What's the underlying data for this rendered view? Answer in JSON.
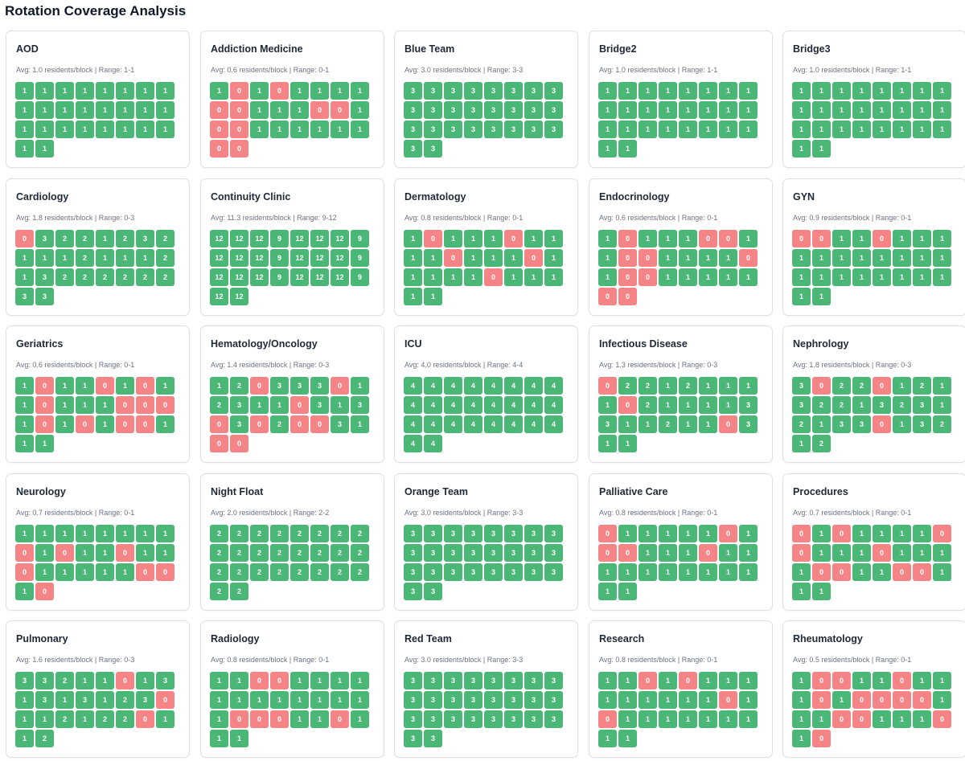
{
  "page_title": "Rotation Coverage Analysis",
  "colors": {
    "covered": "#4bb777",
    "uncovered": "#f48486"
  },
  "rotations": [
    {
      "name": "AOD",
      "stats": "Avg: 1.0 residents/block | Range: 1-1",
      "blocks": [
        1,
        1,
        1,
        1,
        1,
        1,
        1,
        1,
        1,
        1,
        1,
        1,
        1,
        1,
        1,
        1,
        1,
        1,
        1,
        1,
        1,
        1,
        1,
        1,
        1,
        1
      ]
    },
    {
      "name": "Addiction Medicine",
      "stats": "Avg: 0.6 residents/block | Range: 0-1",
      "blocks": [
        1,
        0,
        1,
        0,
        1,
        1,
        1,
        1,
        0,
        0,
        1,
        1,
        1,
        0,
        0,
        1,
        0,
        0,
        1,
        1,
        1,
        1,
        1,
        1,
        0,
        0
      ]
    },
    {
      "name": "Blue Team",
      "stats": "Avg: 3.0 residents/block | Range: 3-3",
      "blocks": [
        3,
        3,
        3,
        3,
        3,
        3,
        3,
        3,
        3,
        3,
        3,
        3,
        3,
        3,
        3,
        3,
        3,
        3,
        3,
        3,
        3,
        3,
        3,
        3,
        3,
        3
      ]
    },
    {
      "name": "Bridge2",
      "stats": "Avg: 1.0 residents/block | Range: 1-1",
      "blocks": [
        1,
        1,
        1,
        1,
        1,
        1,
        1,
        1,
        1,
        1,
        1,
        1,
        1,
        1,
        1,
        1,
        1,
        1,
        1,
        1,
        1,
        1,
        1,
        1,
        1,
        1
      ]
    },
    {
      "name": "Bridge3",
      "stats": "Avg: 1.0 residents/block | Range: 1-1",
      "blocks": [
        1,
        1,
        1,
        1,
        1,
        1,
        1,
        1,
        1,
        1,
        1,
        1,
        1,
        1,
        1,
        1,
        1,
        1,
        1,
        1,
        1,
        1,
        1,
        1,
        1,
        1
      ]
    },
    {
      "name": "Cardiology",
      "stats": "Avg: 1.8 residents/block | Range: 0-3",
      "blocks": [
        0,
        3,
        2,
        2,
        1,
        2,
        3,
        2,
        1,
        1,
        1,
        2,
        1,
        1,
        1,
        2,
        1,
        3,
        2,
        2,
        2,
        2,
        2,
        2,
        3,
        3
      ]
    },
    {
      "name": "Continuity Clinic",
      "stats": "Avg: 11.3 residents/block | Range: 9-12",
      "blocks": [
        12,
        12,
        12,
        9,
        12,
        12,
        12,
        9,
        12,
        12,
        12,
        9,
        12,
        12,
        12,
        9,
        12,
        12,
        12,
        9,
        12,
        12,
        12,
        9,
        12,
        12
      ]
    },
    {
      "name": "Dermatology",
      "stats": "Avg: 0.8 residents/block | Range: 0-1",
      "blocks": [
        1,
        0,
        1,
        1,
        1,
        0,
        1,
        1,
        1,
        1,
        0,
        1,
        1,
        1,
        0,
        1,
        1,
        1,
        1,
        1,
        0,
        1,
        1,
        1,
        1,
        1
      ]
    },
    {
      "name": "Endocrinology",
      "stats": "Avg: 0.6 residents/block | Range: 0-1",
      "blocks": [
        1,
        0,
        1,
        1,
        1,
        0,
        0,
        1,
        1,
        0,
        0,
        1,
        1,
        1,
        1,
        0,
        1,
        0,
        0,
        1,
        1,
        1,
        1,
        1,
        0,
        0
      ]
    },
    {
      "name": "GYN",
      "stats": "Avg: 0.9 residents/block | Range: 0-1",
      "blocks": [
        0,
        0,
        1,
        1,
        0,
        1,
        1,
        1,
        1,
        1,
        1,
        1,
        1,
        1,
        1,
        1,
        1,
        1,
        1,
        1,
        1,
        1,
        1,
        1,
        1,
        1
      ]
    },
    {
      "name": "Geriatrics",
      "stats": "Avg: 0.6 residents/block | Range: 0-1",
      "blocks": [
        1,
        0,
        1,
        1,
        0,
        1,
        0,
        1,
        1,
        0,
        1,
        1,
        1,
        0,
        0,
        0,
        1,
        0,
        1,
        0,
        1,
        0,
        0,
        1,
        1,
        1
      ]
    },
    {
      "name": "Hematology/Oncology",
      "stats": "Avg: 1.4 residents/block | Range: 0-3",
      "blocks": [
        1,
        2,
        0,
        3,
        3,
        3,
        0,
        1,
        2,
        3,
        1,
        1,
        0,
        3,
        1,
        3,
        0,
        3,
        0,
        2,
        0,
        0,
        3,
        1,
        0,
        0
      ]
    },
    {
      "name": "ICU",
      "stats": "Avg: 4.0 residents/block | Range: 4-4",
      "blocks": [
        4,
        4,
        4,
        4,
        4,
        4,
        4,
        4,
        4,
        4,
        4,
        4,
        4,
        4,
        4,
        4,
        4,
        4,
        4,
        4,
        4,
        4,
        4,
        4,
        4,
        4
      ]
    },
    {
      "name": "Infectious Disease",
      "stats": "Avg: 1.3 residents/block | Range: 0-3",
      "blocks": [
        0,
        2,
        2,
        1,
        2,
        1,
        1,
        1,
        1,
        0,
        2,
        1,
        1,
        1,
        1,
        3,
        3,
        1,
        1,
        2,
        1,
        1,
        0,
        3,
        1,
        1
      ]
    },
    {
      "name": "Nephrology",
      "stats": "Avg: 1.8 residents/block | Range: 0-3",
      "blocks": [
        3,
        0,
        2,
        2,
        0,
        1,
        2,
        1,
        3,
        2,
        2,
        1,
        3,
        2,
        3,
        1,
        2,
        1,
        3,
        3,
        0,
        1,
        3,
        2,
        1,
        2
      ]
    },
    {
      "name": "Neurology",
      "stats": "Avg: 0.7 residents/block | Range: 0-1",
      "blocks": [
        1,
        1,
        1,
        1,
        1,
        1,
        1,
        1,
        0,
        1,
        0,
        1,
        1,
        0,
        1,
        1,
        0,
        1,
        1,
        1,
        1,
        1,
        0,
        0,
        1,
        0
      ]
    },
    {
      "name": "Night Float",
      "stats": "Avg: 2.0 residents/block | Range: 2-2",
      "blocks": [
        2,
        2,
        2,
        2,
        2,
        2,
        2,
        2,
        2,
        2,
        2,
        2,
        2,
        2,
        2,
        2,
        2,
        2,
        2,
        2,
        2,
        2,
        2,
        2,
        2,
        2
      ]
    },
    {
      "name": "Orange Team",
      "stats": "Avg: 3.0 residents/block | Range: 3-3",
      "blocks": [
        3,
        3,
        3,
        3,
        3,
        3,
        3,
        3,
        3,
        3,
        3,
        3,
        3,
        3,
        3,
        3,
        3,
        3,
        3,
        3,
        3,
        3,
        3,
        3,
        3,
        3
      ]
    },
    {
      "name": "Palliative Care",
      "stats": "Avg: 0.8 residents/block | Range: 0-1",
      "blocks": [
        0,
        1,
        1,
        1,
        1,
        1,
        0,
        1,
        0,
        0,
        1,
        1,
        1,
        0,
        1,
        1,
        1,
        1,
        1,
        1,
        1,
        1,
        1,
        1,
        1,
        1
      ]
    },
    {
      "name": "Procedures",
      "stats": "Avg: 0.7 residents/block | Range: 0-1",
      "blocks": [
        0,
        1,
        0,
        1,
        1,
        1,
        1,
        0,
        0,
        1,
        1,
        1,
        0,
        1,
        1,
        1,
        1,
        0,
        0,
        1,
        1,
        0,
        0,
        1,
        1,
        1
      ]
    },
    {
      "name": "Pulmonary",
      "stats": "Avg: 1.6 residents/block | Range: 0-3",
      "blocks": [
        3,
        3,
        2,
        1,
        1,
        0,
        1,
        3,
        1,
        3,
        1,
        3,
        1,
        2,
        3,
        0,
        1,
        1,
        2,
        1,
        2,
        2,
        0,
        1,
        1,
        2
      ]
    },
    {
      "name": "Radiology",
      "stats": "Avg: 0.8 residents/block | Range: 0-1",
      "blocks": [
        1,
        1,
        0,
        0,
        1,
        1,
        1,
        1,
        1,
        1,
        1,
        1,
        1,
        1,
        1,
        1,
        1,
        0,
        0,
        0,
        1,
        1,
        0,
        1,
        1,
        1
      ]
    },
    {
      "name": "Red Team",
      "stats": "Avg: 3.0 residents/block | Range: 3-3",
      "blocks": [
        3,
        3,
        3,
        3,
        3,
        3,
        3,
        3,
        3,
        3,
        3,
        3,
        3,
        3,
        3,
        3,
        3,
        3,
        3,
        3,
        3,
        3,
        3,
        3,
        3,
        3
      ]
    },
    {
      "name": "Research",
      "stats": "Avg: 0.8 residents/block | Range: 0-1",
      "blocks": [
        1,
        1,
        0,
        1,
        0,
        1,
        1,
        1,
        1,
        1,
        1,
        1,
        1,
        1,
        0,
        1,
        0,
        1,
        1,
        1,
        1,
        1,
        1,
        1,
        1,
        1
      ]
    },
    {
      "name": "Rheumatology",
      "stats": "Avg: 0.5 residents/block | Range: 0-1",
      "blocks": [
        1,
        0,
        0,
        1,
        1,
        0,
        1,
        1,
        1,
        0,
        1,
        0,
        0,
        0,
        0,
        1,
        1,
        1,
        0,
        0,
        1,
        1,
        1,
        0,
        1,
        0
      ]
    }
  ]
}
